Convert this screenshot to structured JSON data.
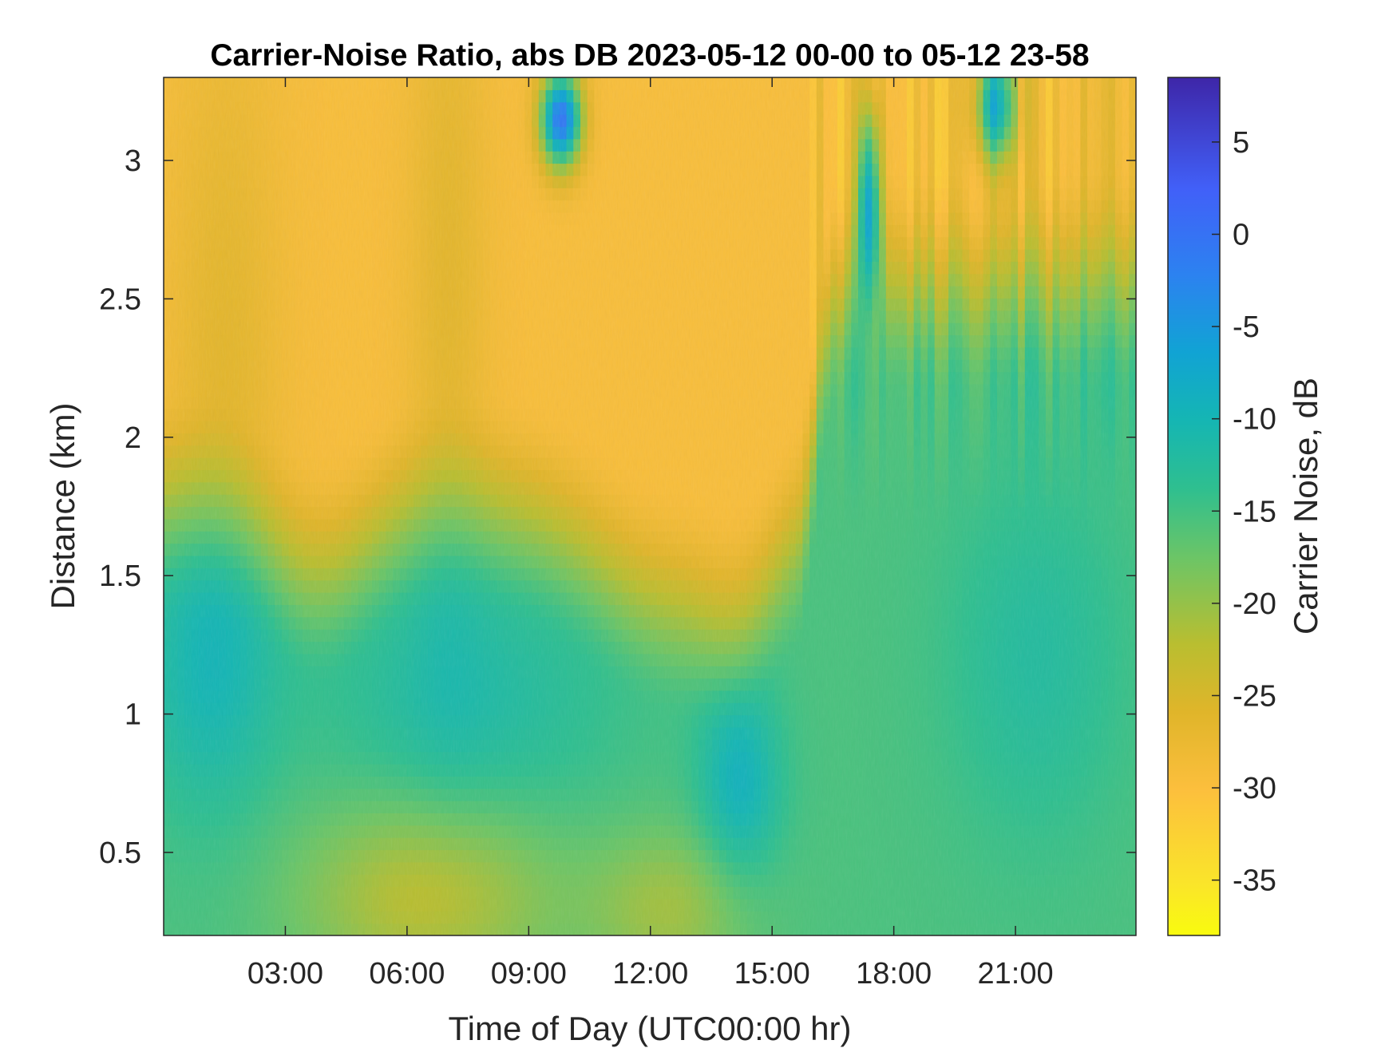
{
  "chart_data": {
    "type": "heatmap",
    "title": "Carrier-Noise Ratio, abs DB 2023-05-12 00-00 to 05-12 23-58",
    "xlabel": "Time of Day (UTC00:00 hr)",
    "ylabel": "Distance (km)",
    "xlim": [
      0,
      23.97
    ],
    "ylim": [
      0.2,
      3.3
    ],
    "x_ticks": [
      {
        "value": 3,
        "label": "03:00"
      },
      {
        "value": 6,
        "label": "06:00"
      },
      {
        "value": 9,
        "label": "09:00"
      },
      {
        "value": 12,
        "label": "12:00"
      },
      {
        "value": 15,
        "label": "15:00"
      },
      {
        "value": 18,
        "label": "18:00"
      },
      {
        "value": 21,
        "label": "21:00"
      }
    ],
    "y_ticks": [
      {
        "value": 0.5,
        "label": "0.5"
      },
      {
        "value": 1,
        "label": "1"
      },
      {
        "value": 1.5,
        "label": "1.5"
      },
      {
        "value": 2,
        "label": "2"
      },
      {
        "value": 2.5,
        "label": "2.5"
      },
      {
        "value": 3,
        "label": "3"
      }
    ],
    "colorbar": {
      "label": "Carrier Noise, dB",
      "range": [
        -38,
        8.5
      ],
      "ticks": [
        {
          "value": 5,
          "label": "5"
        },
        {
          "value": 0,
          "label": "0"
        },
        {
          "value": -5,
          "label": "-5"
        },
        {
          "value": -10,
          "label": "-10"
        },
        {
          "value": -15,
          "label": "-15"
        },
        {
          "value": -20,
          "label": "-20"
        },
        {
          "value": -25,
          "label": "-25"
        },
        {
          "value": -30,
          "label": "-30"
        },
        {
          "value": -35,
          "label": "-35"
        }
      ],
      "colormap": "parula-reversed"
    }
  }
}
